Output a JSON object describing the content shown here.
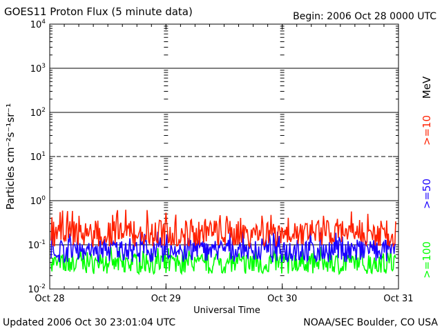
{
  "header": {
    "title": "GOES11 Proton Flux (5 minute data)",
    "begin": "Begin: 2006 Oct 28 0000 UTC"
  },
  "footer": {
    "updated": "Updated 2006 Oct 30 23:01:04 UTC",
    "credit": "NOAA/SEC Boulder, CO USA"
  },
  "legend": {
    "unit": "MeV",
    "items": [
      {
        "label": ">=10",
        "color": "#ff2000"
      },
      {
        "label": ">=50",
        "color": "#1a00ff"
      },
      {
        "label": ">=100",
        "color": "#00ff00"
      }
    ]
  },
  "chart_data": {
    "type": "line",
    "title": "GOES11 Proton Flux (5 minute data)",
    "xlabel": "Universal Time",
    "ylabel": "Particles cm⁻²s⁻¹sr⁻¹",
    "yscale": "log",
    "ylim": [
      0.01,
      10000
    ],
    "xlim": [
      "2006-10-28",
      "2006-10-31"
    ],
    "x_ticks": [
      "Oct 28",
      "Oct 29",
      "Oct 30",
      "Oct 31"
    ],
    "y_ticks": [
      {
        "base": "10",
        "exp": "-2"
      },
      {
        "base": "10",
        "exp": "-1"
      },
      {
        "base": "10",
        "exp": "0"
      },
      {
        "base": "10",
        "exp": "1"
      },
      {
        "base": "10",
        "exp": "2"
      },
      {
        "base": "10",
        "exp": "3"
      },
      {
        "base": "10",
        "exp": "4"
      }
    ],
    "grid": "horizontal lines at each decade; dashed at 10^1",
    "series": [
      {
        "name": ">=10 MeV",
        "color": "#ff2000",
        "typical": 0.18,
        "min": 0.09,
        "max": 0.65
      },
      {
        "name": ">=50 MeV",
        "color": "#1a00ff",
        "typical": 0.08,
        "min": 0.04,
        "max": 0.2
      },
      {
        "name": ">=100 MeV",
        "color": "#00ff00",
        "typical": 0.04,
        "min": 0.022,
        "max": 0.09
      }
    ]
  }
}
